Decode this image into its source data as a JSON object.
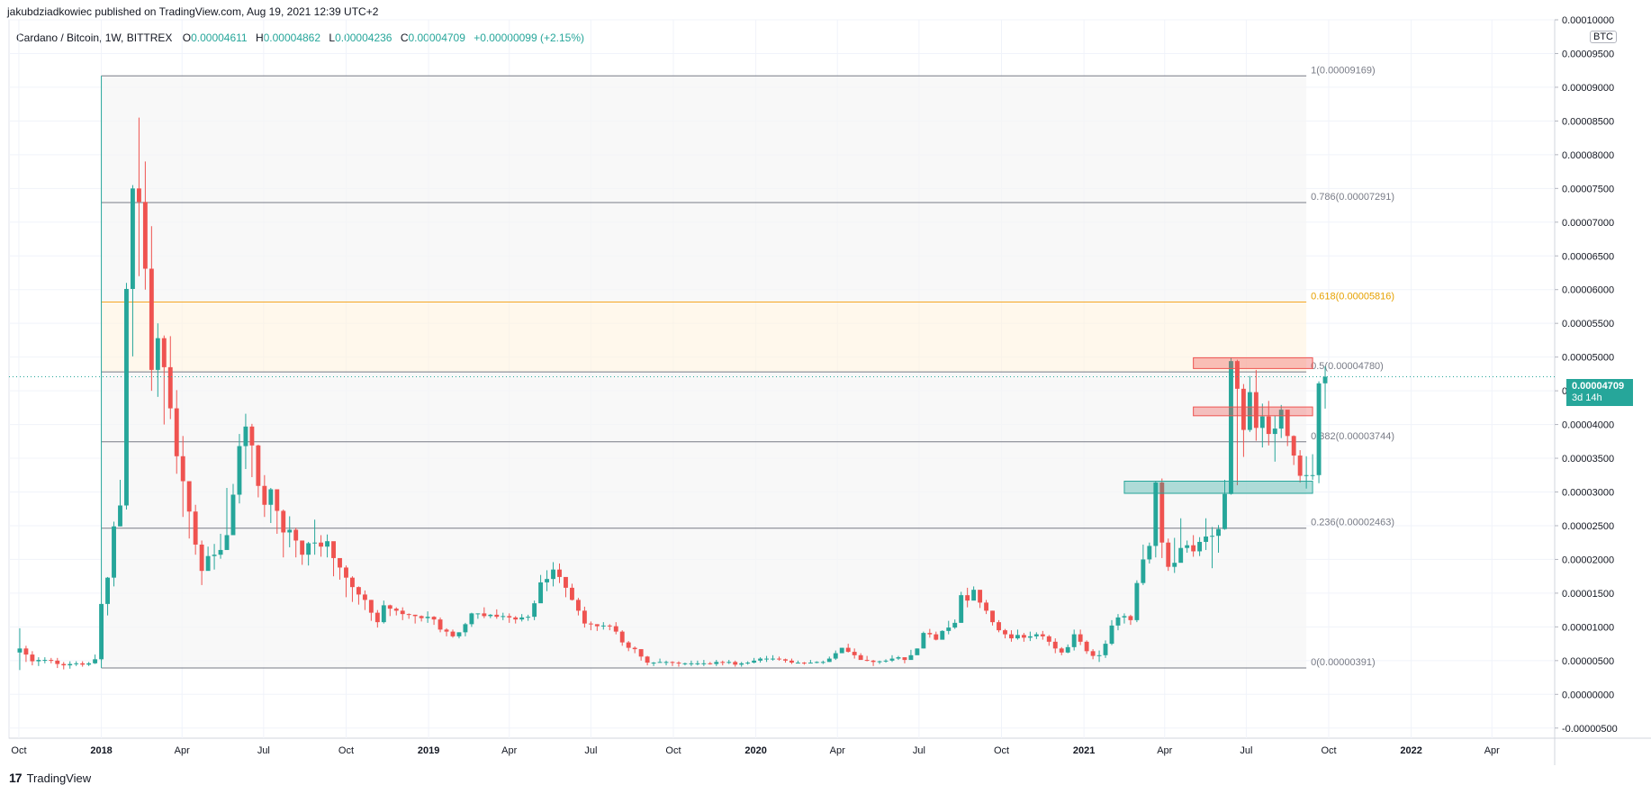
{
  "publisher": "jakubdziadkowiec published on TradingView.com, Aug 19, 2021 12:39 UTC+2",
  "legend": {
    "symbol": "Cardano / Bitcoin, 1W, BITTREX",
    "open_label": "O",
    "open": "0.00004611",
    "high_label": "H",
    "high": "0.00004862",
    "low_label": "L",
    "low": "0.00004236",
    "close_label": "C",
    "close": "0.00004709",
    "change": "+0.00000099 (+2.15%)"
  },
  "currency_badge": "BTC",
  "last_price": {
    "value": "0.00004709",
    "countdown": "3d 14h"
  },
  "footer": {
    "logo": "17",
    "brand": "TradingView"
  },
  "colors": {
    "up": "#26a69a",
    "down": "#ef5350",
    "fib_highlight": "#f5a623",
    "grid": "#f0f3fa"
  },
  "chart_data": {
    "type": "candlestick",
    "pair": "ADA/BTC",
    "interval": "1W",
    "y_axis": {
      "ticks": [
        "0.00010000",
        "0.00009500",
        "0.00009000",
        "0.00008500",
        "0.00008000",
        "0.00007500",
        "0.00007000",
        "0.00006500",
        "0.00006000",
        "0.00005500",
        "0.00005000",
        "0.00004500",
        "0.00004000",
        "0.00003500",
        "0.00003000",
        "0.00002500",
        "0.00002000",
        "0.00001500",
        "0.00001000",
        "0.00000500",
        "0.00000000",
        "-0.00000500"
      ],
      "range": [
        -6.5e-06,
        0.0001
      ]
    },
    "x_axis": {
      "ticks": [
        "Oct",
        "2018",
        "Apr",
        "Jul",
        "Oct",
        "2019",
        "Apr",
        "Jul",
        "Oct",
        "2020",
        "Apr",
        "Jul",
        "Oct",
        "2021",
        "Apr",
        "Jul",
        "Oct",
        "2022",
        "Apr"
      ],
      "range": [
        "2017-09-20",
        "2022-06-10"
      ]
    },
    "fibonacci": [
      {
        "level": "1",
        "price": "0.00009169",
        "value": 9.169e-05
      },
      {
        "level": "0.786",
        "price": "0.00007291",
        "value": 7.291e-05
      },
      {
        "level": "0.618",
        "price": "0.00005816",
        "value": 5.816e-05,
        "highlight": true
      },
      {
        "level": "0.5",
        "price": "0.00004780",
        "value": 4.78e-05
      },
      {
        "level": "0.382",
        "price": "0.00003744",
        "value": 3.744e-05
      },
      {
        "level": "0.236",
        "price": "0.00002463",
        "value": 2.463e-05
      },
      {
        "level": "0",
        "price": "0.00000391",
        "value": 3.91e-06
      }
    ],
    "zones": [
      {
        "kind": "resistance",
        "from": "2021-05-03",
        "to": "2021-09-13",
        "low": 4.83e-05,
        "high": 4.99e-05
      },
      {
        "kind": "resistance",
        "from": "2021-05-03",
        "to": "2021-09-13",
        "low": 4.13e-05,
        "high": 4.26e-05
      },
      {
        "kind": "support",
        "from": "2021-02-15",
        "to": "2021-09-13",
        "low": 2.98e-05,
        "high": 3.16e-05
      }
    ],
    "ohlc_weekly": [
      [
        6.2,
        6.8,
        9.8,
        3.6
      ],
      [
        6.8,
        5.9,
        7.2,
        4.8
      ],
      [
        5.9,
        4.9,
        6.4,
        4.3
      ],
      [
        4.9,
        5.1,
        5.5,
        4.2
      ],
      [
        5.1,
        5.1,
        5.5,
        4.6
      ],
      [
        5.1,
        5.0,
        5.4,
        4.6
      ],
      [
        5.0,
        4.5,
        5.4,
        3.9
      ],
      [
        4.5,
        4.3,
        4.8,
        3.7
      ],
      [
        4.3,
        4.5,
        4.9,
        3.8
      ],
      [
        4.5,
        4.6,
        4.9,
        4.2
      ],
      [
        4.6,
        4.4,
        4.9,
        4.1
      ],
      [
        4.4,
        4.6,
        4.8,
        4.2
      ],
      [
        4.6,
        5.2,
        5.9,
        4.5
      ],
      [
        5.2,
        13.4,
        13.4,
        5.0
      ],
      [
        13.4,
        17.3,
        17.4,
        11.7
      ],
      [
        17.3,
        24.9,
        25.6,
        16.0
      ],
      [
        24.9,
        28.0,
        31.8,
        24.9
      ],
      [
        28.0,
        60.1,
        61.0,
        27.4
      ],
      [
        60.1,
        75.0,
        75.5,
        50.1
      ],
      [
        75.0,
        73.0,
        85.5,
        62.0
      ],
      [
        73.0,
        63.1,
        79.0,
        60.0
      ],
      [
        63.1,
        48.1,
        69.4,
        45.0
      ],
      [
        48.1,
        52.8,
        55.0,
        44.1
      ],
      [
        52.8,
        48.5,
        53.2,
        40.0
      ],
      [
        48.5,
        42.4,
        53.1,
        40.8
      ],
      [
        42.4,
        35.3,
        45.1,
        32.7
      ],
      [
        35.3,
        31.6,
        38.3,
        26.3
      ],
      [
        31.6,
        27.1,
        31.1,
        23.1
      ],
      [
        27.1,
        22.2,
        28.1,
        20.7
      ],
      [
        22.2,
        18.3,
        22.8,
        16.2
      ],
      [
        18.3,
        20.5,
        21.9,
        18.5
      ],
      [
        20.5,
        20.7,
        22.3,
        18.5
      ],
      [
        20.7,
        21.4,
        23.8,
        20.1
      ],
      [
        21.4,
        23.6,
        30.6,
        21.8
      ],
      [
        23.6,
        29.6,
        31.2,
        27.5
      ],
      [
        29.6,
        36.8,
        38.6,
        28.3
      ],
      [
        36.8,
        39.7,
        41.6,
        33.4
      ],
      [
        39.7,
        36.9,
        40.1,
        32.2
      ],
      [
        36.9,
        30.9,
        37.0,
        29.2
      ],
      [
        30.9,
        28.1,
        32.5,
        26.3
      ],
      [
        28.1,
        30.4,
        30.6,
        25.4
      ],
      [
        30.4,
        27.2,
        30.2,
        23.8
      ],
      [
        27.2,
        24.0,
        27.4,
        20.3
      ],
      [
        24.0,
        24.4,
        26.4,
        21.8
      ],
      [
        24.4,
        22.8,
        24.7,
        20.3
      ],
      [
        22.8,
        20.7,
        22.6,
        19.2
      ],
      [
        20.7,
        22.4,
        22.6,
        19.1
      ],
      [
        22.4,
        22.5,
        25.9,
        20.7
      ],
      [
        22.5,
        21.9,
        23.6,
        20.4
      ],
      [
        21.9,
        22.7,
        23.7,
        20.3
      ],
      [
        22.7,
        20.2,
        22.6,
        17.5
      ],
      [
        20.2,
        18.8,
        19.9,
        17.0
      ],
      [
        18.8,
        17.3,
        19.1,
        14.4
      ],
      [
        17.3,
        15.9,
        17.5,
        13.7
      ],
      [
        15.9,
        14.8,
        16.0,
        13.3
      ],
      [
        14.8,
        14.0,
        15.4,
        12.5
      ],
      [
        14.0,
        12.1,
        14.0,
        10.9
      ],
      [
        12.1,
        10.7,
        12.5,
        9.9
      ],
      [
        10.7,
        13.2,
        13.9,
        10.5
      ],
      [
        13.2,
        12.7,
        13.3,
        11.6
      ],
      [
        12.7,
        12.4,
        12.9,
        11.7
      ],
      [
        12.4,
        11.9,
        12.9,
        11.0
      ],
      [
        11.9,
        11.8,
        12.0,
        11.2
      ],
      [
        11.8,
        11.6,
        11.8,
        10.5
      ],
      [
        11.6,
        11.3,
        11.7,
        10.8
      ],
      [
        11.3,
        11.5,
        12.3,
        10.6
      ],
      [
        11.5,
        11.1,
        11.6,
        10.3
      ],
      [
        11.1,
        9.6,
        11.4,
        9.2
      ],
      [
        9.6,
        9.3,
        9.8,
        8.6
      ],
      [
        9.3,
        8.6,
        9.6,
        8.4
      ],
      [
        8.6,
        9.2,
        9.2,
        8.3
      ],
      [
        9.2,
        10.4,
        10.6,
        8.6
      ],
      [
        10.4,
        12.0,
        12.1,
        10.0
      ],
      [
        12.0,
        12.0,
        12.0,
        11.2
      ],
      [
        12.0,
        11.6,
        12.9,
        11.3
      ],
      [
        11.6,
        11.8,
        11.9,
        11.3
      ],
      [
        11.8,
        11.5,
        12.6,
        11.2
      ],
      [
        11.5,
        11.6,
        12.1,
        11.0
      ],
      [
        11.6,
        11.4,
        12.0,
        10.6
      ],
      [
        11.4,
        11.1,
        11.6,
        10.5
      ],
      [
        11.1,
        11.4,
        11.9,
        10.8
      ],
      [
        11.4,
        11.5,
        11.8,
        10.9
      ],
      [
        11.5,
        13.5,
        13.9,
        11.0
      ],
      [
        13.5,
        16.6,
        17.7,
        13.6
      ],
      [
        16.6,
        17.1,
        18.4,
        15.3
      ],
      [
        17.1,
        18.5,
        19.6,
        16.0
      ],
      [
        18.5,
        17.4,
        19.4,
        16.5
      ],
      [
        17.4,
        15.8,
        17.3,
        14.4
      ],
      [
        15.8,
        14.0,
        16.4,
        13.9
      ],
      [
        14.0,
        12.4,
        14.3,
        11.7
      ],
      [
        12.4,
        10.5,
        13.0,
        9.9
      ],
      [
        10.5,
        10.4,
        10.8,
        9.5
      ],
      [
        10.4,
        10.1,
        10.4,
        9.4
      ],
      [
        10.1,
        10.2,
        10.7,
        9.6
      ],
      [
        10.2,
        10.1,
        10.4,
        9.5
      ],
      [
        10.1,
        9.3,
        10.7,
        8.9
      ],
      [
        9.3,
        7.7,
        9.5,
        7.2
      ],
      [
        7.7,
        6.9,
        7.9,
        6.4
      ],
      [
        6.9,
        6.7,
        7.1,
        6.1
      ],
      [
        6.7,
        5.6,
        6.6,
        5.0
      ],
      [
        5.6,
        4.7,
        5.7,
        4.3
      ],
      [
        4.7,
        4.7,
        4.8,
        4.2
      ],
      [
        4.7,
        4.8,
        5.3,
        4.7
      ],
      [
        4.8,
        4.8,
        5.0,
        4.3
      ],
      [
        4.8,
        4.7,
        4.9,
        4.2
      ],
      [
        4.7,
        4.6,
        4.9,
        4.1
      ],
      [
        4.6,
        4.6,
        4.7,
        4.3
      ],
      [
        4.6,
        4.6,
        5.0,
        4.2
      ],
      [
        4.6,
        4.6,
        5.0,
        4.3
      ],
      [
        4.6,
        4.6,
        5.1,
        4.2
      ],
      [
        4.6,
        4.5,
        4.8,
        4.4
      ],
      [
        4.5,
        4.8,
        5.1,
        4.2
      ],
      [
        4.8,
        4.7,
        5.0,
        4.3
      ],
      [
        4.7,
        4.8,
        5.1,
        4.5
      ],
      [
        4.8,
        4.4,
        5.0,
        4.1
      ],
      [
        4.4,
        4.6,
        4.8,
        4.1
      ],
      [
        4.6,
        4.7,
        4.9,
        4.4
      ],
      [
        4.7,
        5.0,
        5.4,
        4.6
      ],
      [
        5.0,
        5.3,
        5.5,
        4.7
      ],
      [
        5.3,
        5.3,
        5.7,
        4.8
      ],
      [
        5.3,
        5.3,
        5.8,
        5.0
      ],
      [
        5.3,
        5.2,
        5.6,
        5.0
      ],
      [
        5.2,
        5.0,
        5.3,
        4.7
      ],
      [
        5.0,
        4.7,
        5.3,
        4.5
      ],
      [
        4.7,
        4.7,
        5.0,
        4.6
      ],
      [
        4.7,
        4.6,
        4.8,
        4.4
      ],
      [
        4.6,
        4.7,
        5.1,
        4.6
      ],
      [
        4.7,
        4.8,
        4.9,
        4.6
      ],
      [
        4.8,
        4.8,
        5.0,
        4.5
      ],
      [
        4.8,
        5.3,
        5.6,
        4.8
      ],
      [
        5.3,
        6.1,
        6.5,
        5.1
      ],
      [
        6.1,
        6.9,
        6.9,
        6.2
      ],
      [
        6.9,
        6.3,
        7.5,
        6.2
      ],
      [
        6.3,
        5.8,
        6.8,
        5.3
      ],
      [
        5.8,
        5.1,
        6.1,
        5.2
      ],
      [
        5.1,
        5.0,
        5.7,
        4.9
      ],
      [
        5.0,
        4.8,
        5.1,
        4.2
      ],
      [
        4.8,
        4.9,
        5.0,
        4.5
      ],
      [
        4.9,
        5.0,
        5.2,
        4.7
      ],
      [
        5.0,
        5.3,
        5.8,
        4.8
      ],
      [
        5.3,
        5.5,
        5.7,
        5.1
      ],
      [
        5.5,
        5.1,
        5.4,
        4.6
      ],
      [
        5.1,
        5.8,
        6.6,
        5.7
      ],
      [
        5.8,
        6.8,
        6.8,
        6.2
      ],
      [
        6.8,
        9.1,
        9.3,
        6.8
      ],
      [
        9.1,
        8.9,
        9.7,
        8.4
      ],
      [
        8.9,
        8.1,
        9.3,
        8.0
      ],
      [
        8.1,
        9.4,
        9.5,
        8.2
      ],
      [
        9.4,
        9.9,
        10.9,
        8.9
      ],
      [
        9.9,
        10.6,
        11.1,
        9.7
      ],
      [
        10.6,
        14.7,
        15.2,
        10.6
      ],
      [
        14.7,
        13.9,
        15.8,
        12.9
      ],
      [
        13.9,
        15.5,
        16.0,
        14.0
      ],
      [
        15.5,
        13.6,
        14.9,
        12.8
      ],
      [
        13.6,
        12.4,
        14.0,
        11.9
      ],
      [
        12.4,
        10.7,
        12.4,
        10.2
      ],
      [
        10.7,
        9.5,
        11.0,
        9.2
      ],
      [
        9.5,
        8.9,
        9.7,
        8.3
      ],
      [
        8.9,
        8.3,
        9.5,
        7.8
      ],
      [
        8.3,
        8.8,
        9.6,
        8.1
      ],
      [
        8.8,
        8.4,
        9.1,
        7.8
      ],
      [
        8.4,
        8.6,
        9.3,
        7.9
      ],
      [
        8.6,
        8.9,
        9.2,
        8.2
      ],
      [
        8.9,
        8.6,
        9.4,
        8.1
      ],
      [
        8.6,
        7.8,
        8.8,
        7.2
      ],
      [
        7.8,
        6.8,
        8.3,
        6.1
      ],
      [
        6.8,
        6.2,
        7.0,
        5.8
      ],
      [
        6.2,
        7.0,
        7.4,
        6.1
      ],
      [
        7.0,
        8.9,
        9.6,
        6.5
      ],
      [
        8.9,
        7.8,
        9.6,
        7.3
      ],
      [
        7.8,
        6.4,
        8.0,
        6.0
      ],
      [
        6.4,
        5.7,
        6.7,
        5.2
      ],
      [
        5.7,
        5.8,
        6.5,
        4.8
      ],
      [
        5.8,
        7.5,
        8.0,
        5.4
      ],
      [
        7.5,
        10.2,
        11.0,
        7.3
      ],
      [
        10.2,
        11.4,
        11.9,
        9.5
      ],
      [
        11.4,
        11.6,
        12.0,
        10.5
      ],
      [
        11.6,
        11.0,
        11.8,
        10.3
      ],
      [
        11.0,
        16.5,
        16.9,
        10.7
      ],
      [
        16.5,
        20.0,
        22.2,
        16.2
      ],
      [
        20.0,
        22.0,
        22.5,
        19.4
      ],
      [
        22.0,
        31.4,
        31.6,
        20.3
      ],
      [
        31.4,
        22.5,
        32.0,
        20.2
      ],
      [
        22.5,
        18.9,
        23.1,
        18.3
      ],
      [
        18.9,
        19.5,
        23.2,
        18.0
      ],
      [
        19.5,
        21.7,
        26.1,
        20.2
      ],
      [
        21.7,
        22.1,
        22.8,
        21.0
      ],
      [
        22.1,
        21.2,
        23.6,
        20.4
      ],
      [
        21.2,
        22.6,
        23.3,
        20.5
      ],
      [
        22.6,
        23.4,
        26.1,
        21.4
      ],
      [
        23.4,
        23.5,
        24.8,
        18.7
      ],
      [
        23.5,
        24.5,
        25.1,
        21.0
      ],
      [
        24.5,
        29.7,
        31.8,
        24.4
      ],
      [
        29.7,
        49.4,
        49.9,
        29.6
      ],
      [
        49.4,
        45.3,
        49.6,
        31.0
      ],
      [
        45.3,
        39.2,
        46.0,
        35.2
      ],
      [
        39.2,
        44.8,
        47.2,
        38.9
      ],
      [
        44.8,
        39.5,
        48.1,
        37.6
      ],
      [
        39.5,
        41.2,
        43.1,
        36.6
      ],
      [
        41.2,
        38.6,
        43.5,
        36.9
      ],
      [
        38.6,
        39.4,
        41.3,
        34.5
      ],
      [
        39.4,
        42.2,
        42.9,
        38.0
      ],
      [
        42.2,
        38.3,
        42.0,
        36.8
      ],
      [
        38.3,
        35.4,
        38.4,
        34.0
      ],
      [
        35.4,
        32.4,
        36.2,
        31.4
      ],
      [
        32.4,
        32.5,
        35.3,
        30.5
      ],
      [
        32.5,
        32.5,
        35.6,
        31.8
      ],
      [
        32.5,
        46.1,
        46.4,
        31.3
      ],
      [
        46.11,
        47.09,
        48.62,
        42.36
      ]
    ]
  }
}
